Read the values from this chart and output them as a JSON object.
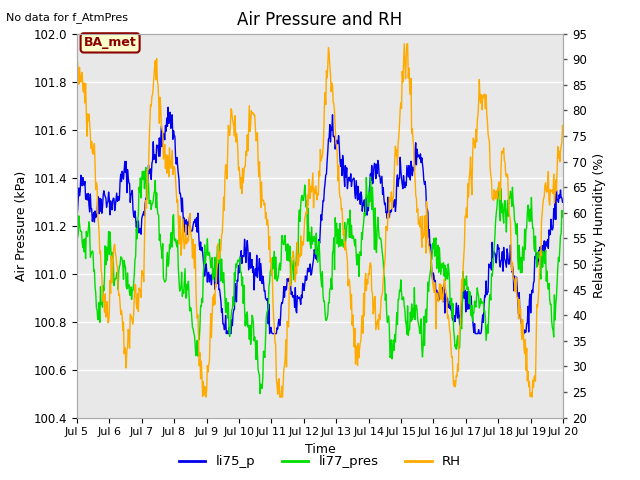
{
  "title": "Air Pressure and RH",
  "top_left_text": "No data for f_AtmPres",
  "box_label": "BA_met",
  "xlabel": "Time",
  "ylabel_left": "Air Pressure (kPa)",
  "ylabel_right": "Relativity Humidity (%)",
  "ylim_left": [
    100.4,
    102.0
  ],
  "ylim_right": [
    20,
    95
  ],
  "yticks_left": [
    100.4,
    100.6,
    100.8,
    101.0,
    101.2,
    101.4,
    101.6,
    101.8,
    102.0
  ],
  "yticks_right": [
    20,
    25,
    30,
    35,
    40,
    45,
    50,
    55,
    60,
    65,
    70,
    75,
    80,
    85,
    90,
    95
  ],
  "xtick_labels": [
    "Jul 5",
    "Jul 6",
    "Jul 7",
    "Jul 8",
    "Jul 9",
    "Jul 10",
    "Jul 11",
    "Jul 12",
    "Jul 13",
    "Jul 14",
    "Jul 15",
    "Jul 16",
    "Jul 17",
    "Jul 18",
    "Jul 19",
    "Jul 20"
  ],
  "color_li75": "#0000ee",
  "color_li77": "#00dd00",
  "color_rh": "#ffaa00",
  "bg_color": "#e8e8e8",
  "legend_labels": [
    "li75_p",
    "li77_pres",
    "RH"
  ],
  "legend_colors": [
    "#0000ee",
    "#00dd00",
    "#ffaa00"
  ],
  "title_fontsize": 12,
  "label_fontsize": 9,
  "tick_fontsize": 8.5
}
